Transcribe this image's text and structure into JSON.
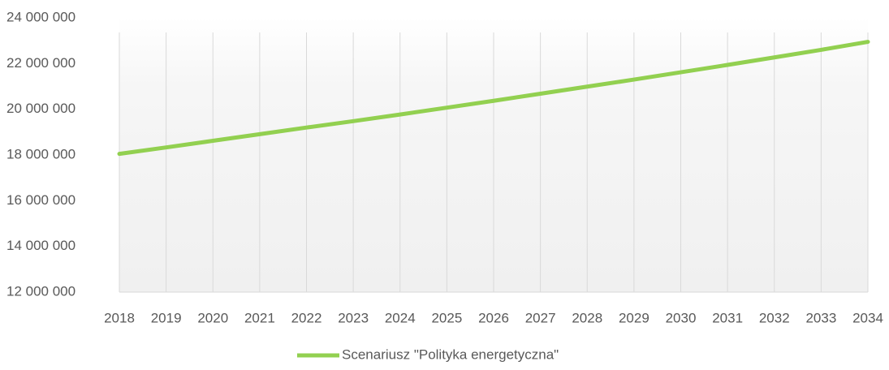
{
  "chart_data": {
    "type": "line",
    "categories": [
      "2018",
      "2019",
      "2020",
      "2021",
      "2022",
      "2023",
      "2024",
      "2025",
      "2026",
      "2027",
      "2028",
      "2029",
      "2030",
      "2031",
      "2032",
      "2033",
      "2034"
    ],
    "series": [
      {
        "name": "Scenariusz \"Polityka energetyczna\"",
        "color": "#92d050",
        "values": [
          18050000,
          18330000,
          18620000,
          18910000,
          19200000,
          19480000,
          19770000,
          20070000,
          20370000,
          20680000,
          20990000,
          21300000,
          21620000,
          21940000,
          22270000,
          22600000,
          22950000
        ]
      }
    ],
    "ylim": [
      12000000,
      24000000
    ],
    "yticks": [
      {
        "value": 12000000,
        "label": "12 000 000"
      },
      {
        "value": 14000000,
        "label": "14 000 000"
      },
      {
        "value": 16000000,
        "label": "16 000 000"
      },
      {
        "value": 18000000,
        "label": "18 000 000"
      },
      {
        "value": 20000000,
        "label": "20 000 000"
      },
      {
        "value": 22000000,
        "label": "22 000 000"
      },
      {
        "value": 24000000,
        "label": "24 000 000"
      }
    ],
    "grid": "x",
    "legend": "bottom"
  }
}
